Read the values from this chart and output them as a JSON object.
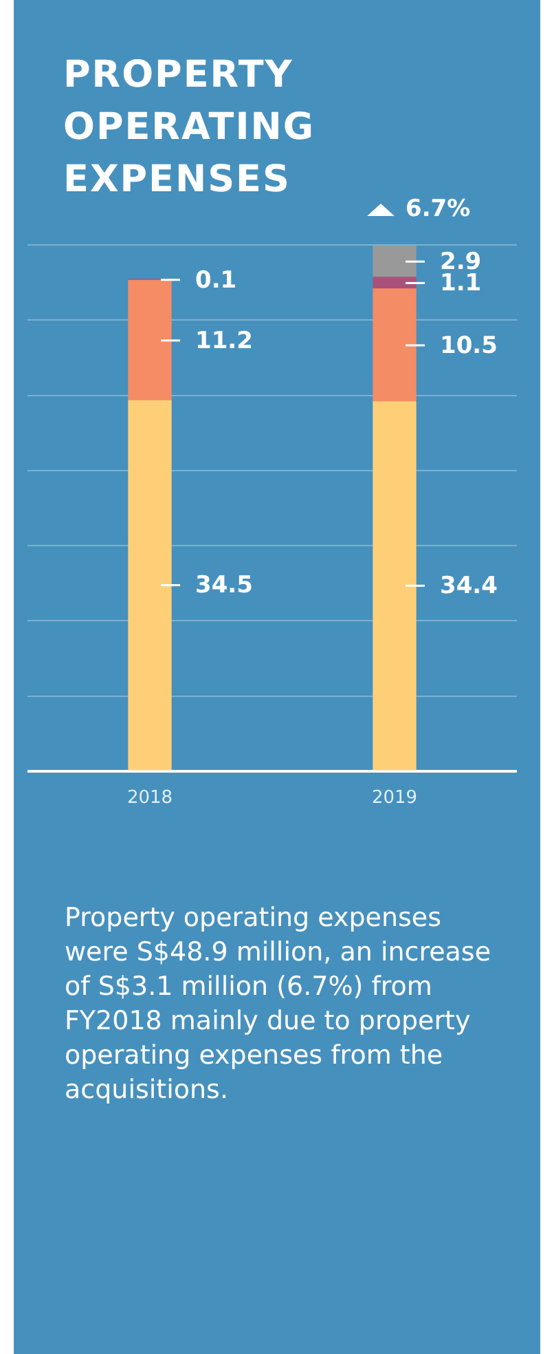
{
  "chart_data": {
    "type": "bar",
    "title": "PROPERTY OPERATING EXPENSES",
    "categories": [
      "2018",
      "2019"
    ],
    "stacked": true,
    "series": [
      {
        "color": "#ffcf78",
        "values": [
          34.5,
          34.4
        ]
      },
      {
        "color": "#f48c65",
        "values": [
          11.2,
          10.5
        ]
      },
      {
        "color": "#a8527a",
        "values": [
          0.1,
          1.1
        ]
      },
      {
        "color": "#999999",
        "values": [
          null,
          2.9
        ]
      }
    ],
    "data_labels": true,
    "ylim": [
      0,
      49
    ],
    "yticks": [
      {
        "value": 0,
        "label": null
      },
      {
        "value": 7,
        "label": null
      },
      {
        "value": 14,
        "label": null
      },
      {
        "value": 21,
        "label": null
      },
      {
        "value": 28,
        "label": null
      },
      {
        "value": 35,
        "label": null
      },
      {
        "value": 42,
        "label": null
      },
      {
        "value": 49,
        "label": null
      }
    ],
    "tick_labels": "x",
    "grid": "y",
    "legend": false,
    "annotations": [
      {
        "text": "6.7%",
        "x": "2019",
        "y": 48.9
      },
      "Property operating expenses were S$48.9 million, an increase of S$3.1 million (6.7%) from FY2018 mainly due to property operating expenses from the acquisitions."
    ]
  }
}
